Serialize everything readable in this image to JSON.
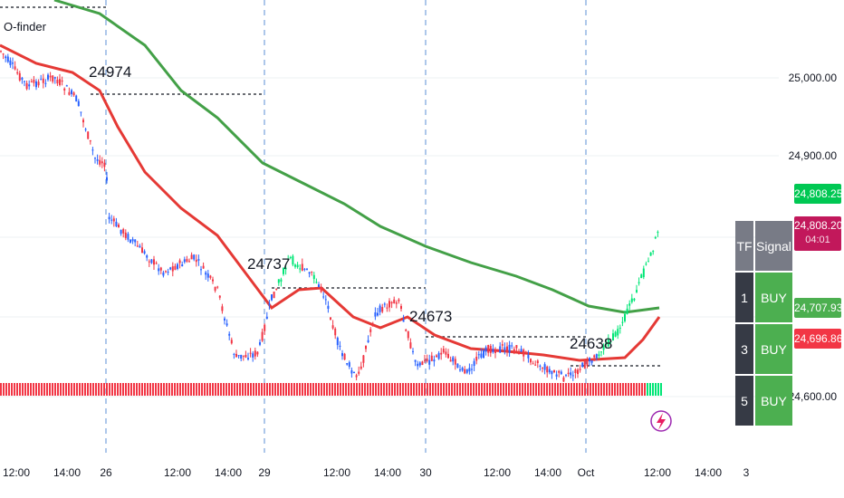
{
  "indicator": {
    "name": "O-finder"
  },
  "price_scale": {
    "ticks": [
      "25,000.00",
      "24,900.00",
      "24,600.00"
    ],
    "badges": [
      {
        "text": "24,808.25",
        "color": "#00c853"
      },
      {
        "text": "24,808.20",
        "color": "#c2185b",
        "countdown": "04:01"
      },
      {
        "text": "24,707.93",
        "color": "#4caf50"
      },
      {
        "text": "24,696.86",
        "color": "#f23645"
      }
    ]
  },
  "time_axis": [
    "12:00",
    "14:00",
    "26",
    "12:00",
    "14:00",
    "29",
    "12:00",
    "14:00",
    "30",
    "12:00",
    "14:00",
    "Oct",
    "12:00",
    "14:00",
    "3"
  ],
  "level_labels": [
    "24974",
    "24737",
    "24673",
    "24638"
  ],
  "signal_table": {
    "headers": [
      "TF",
      "Signal"
    ],
    "rows": [
      {
        "tf": "1",
        "signal": "BUY"
      },
      {
        "tf": "3",
        "signal": "BUY"
      },
      {
        "tf": "5",
        "signal": "BUY"
      }
    ]
  },
  "icons": {
    "alert": "lightning-icon"
  },
  "colors": {
    "bull_candle": "#2962ff",
    "bear_candle": "#f23645",
    "green_candle": "#00e676",
    "ma_slow": "#43a047",
    "ma_fast": "#e53935",
    "grid": "#eef0f3",
    "session_line": "#5b8fd6",
    "level_line": "#131722"
  }
}
